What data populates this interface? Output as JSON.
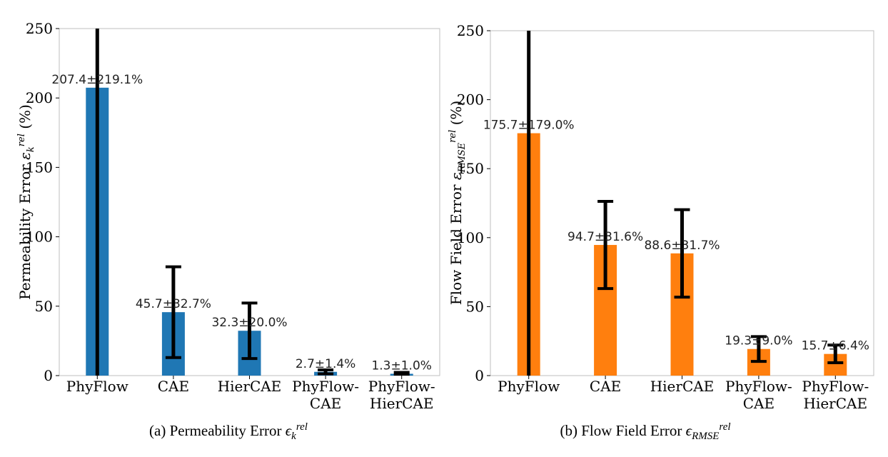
{
  "chart_data": [
    {
      "type": "bar",
      "categories": [
        "PhyFlow",
        "CAE",
        "HierCAE",
        "PhyFlow-CAE",
        "PhyFlow-HierCAE"
      ],
      "tick_lines": [
        [
          "PhyFlow"
        ],
        [
          "CAE"
        ],
        [
          "HierCAE"
        ],
        [
          "PhyFlow-",
          "CAE"
        ],
        [
          "PhyFlow-",
          "HierCAE"
        ]
      ],
      "values": [
        207.4,
        45.7,
        32.3,
        2.7,
        1.3
      ],
      "errors": [
        219.1,
        32.7,
        20.0,
        1.4,
        1.0
      ],
      "data_labels": [
        "207.4±219.1%",
        "45.7±32.7%",
        "32.3±20.0%",
        "2.7±1.4%",
        "1.3±1.0%"
      ],
      "ylabel_main": "Permeability Error",
      "ylabel_symbol": "ε",
      "ylabel_sub": "k",
      "ylabel_sup": "rel",
      "ylabel_unit": "(%)",
      "ylim": [
        0,
        250
      ],
      "yticks": [
        0,
        50,
        100,
        150,
        200,
        250
      ],
      "color": "#1f77b4",
      "error_color": "#000000",
      "grid": false,
      "caption_prefix": "(a) Permeability Error",
      "caption_symbol": "ϵ",
      "caption_sub": "k",
      "caption_sup": "rel"
    },
    {
      "type": "bar",
      "categories": [
        "PhyFlow",
        "CAE",
        "HierCAE",
        "PhyFlow-CAE",
        "PhyFlow-HierCAE"
      ],
      "tick_lines": [
        [
          "PhyFlow"
        ],
        [
          "CAE"
        ],
        [
          "HierCAE"
        ],
        [
          "PhyFlow-",
          "CAE"
        ],
        [
          "PhyFlow-",
          "HierCAE"
        ]
      ],
      "values": [
        175.7,
        94.7,
        88.6,
        19.3,
        15.7
      ],
      "errors": [
        179.0,
        31.6,
        31.7,
        9.0,
        6.4
      ],
      "data_labels": [
        "175.7±179.0%",
        "94.7±31.6%",
        "88.6±31.7%",
        "19.3±9.0%",
        "15.7±6.4%"
      ],
      "ylabel_main": "Flow Field Error",
      "ylabel_symbol": "ε",
      "ylabel_sub": "RMSE",
      "ylabel_sup": "rel",
      "ylabel_unit": "(%)",
      "ylim": [
        0,
        250
      ],
      "yticks": [
        0,
        50,
        100,
        150,
        200,
        250
      ],
      "color": "#ff7f0e",
      "error_color": "#000000",
      "grid": false,
      "caption_prefix": "(b) Flow Field Error",
      "caption_symbol": "ϵ",
      "caption_sub": "RMSE",
      "caption_sup": "rel"
    }
  ]
}
